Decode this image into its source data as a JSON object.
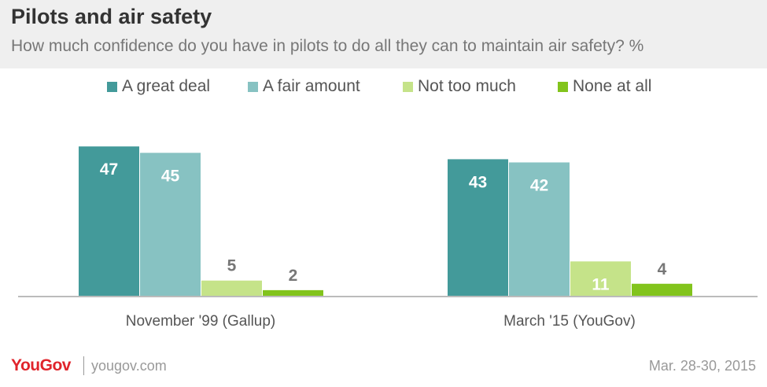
{
  "title": "Pilots and air safety",
  "subtitle": "How much confidence do you have in pilots to do all they can to maintain air safety? %",
  "legend": [
    {
      "label": "A great deal",
      "color": "#439a9a"
    },
    {
      "label": "A fair amount",
      "color": "#87c2c2"
    },
    {
      "label": "Not too much",
      "color": "#c5e389"
    },
    {
      "label": "None at all",
      "color": "#82c41c"
    }
  ],
  "chart_data": {
    "type": "bar",
    "title": "Pilots and air safety",
    "subtitle": "How much confidence do you have in pilots to do all they can to maintain air safety? %",
    "categories": [
      "November '99 (Gallup)",
      "March '15 (YouGov)"
    ],
    "series": [
      {
        "name": "A great deal",
        "values": [
          47,
          43
        ],
        "color": "#439a9a"
      },
      {
        "name": "A fair amount",
        "values": [
          45,
          42
        ],
        "color": "#87c2c2"
      },
      {
        "name": "Not too much",
        "values": [
          5,
          11
        ],
        "color": "#c5e389"
      },
      {
        "name": "None at all",
        "values": [
          2,
          4
        ],
        "color": "#82c41c"
      }
    ],
    "ylim": [
      0,
      50
    ],
    "grid": false,
    "legend_position": "top"
  },
  "footer": {
    "logo": "YouGov",
    "url": "yougov.com",
    "date": "Mar. 28-30, 2015"
  }
}
